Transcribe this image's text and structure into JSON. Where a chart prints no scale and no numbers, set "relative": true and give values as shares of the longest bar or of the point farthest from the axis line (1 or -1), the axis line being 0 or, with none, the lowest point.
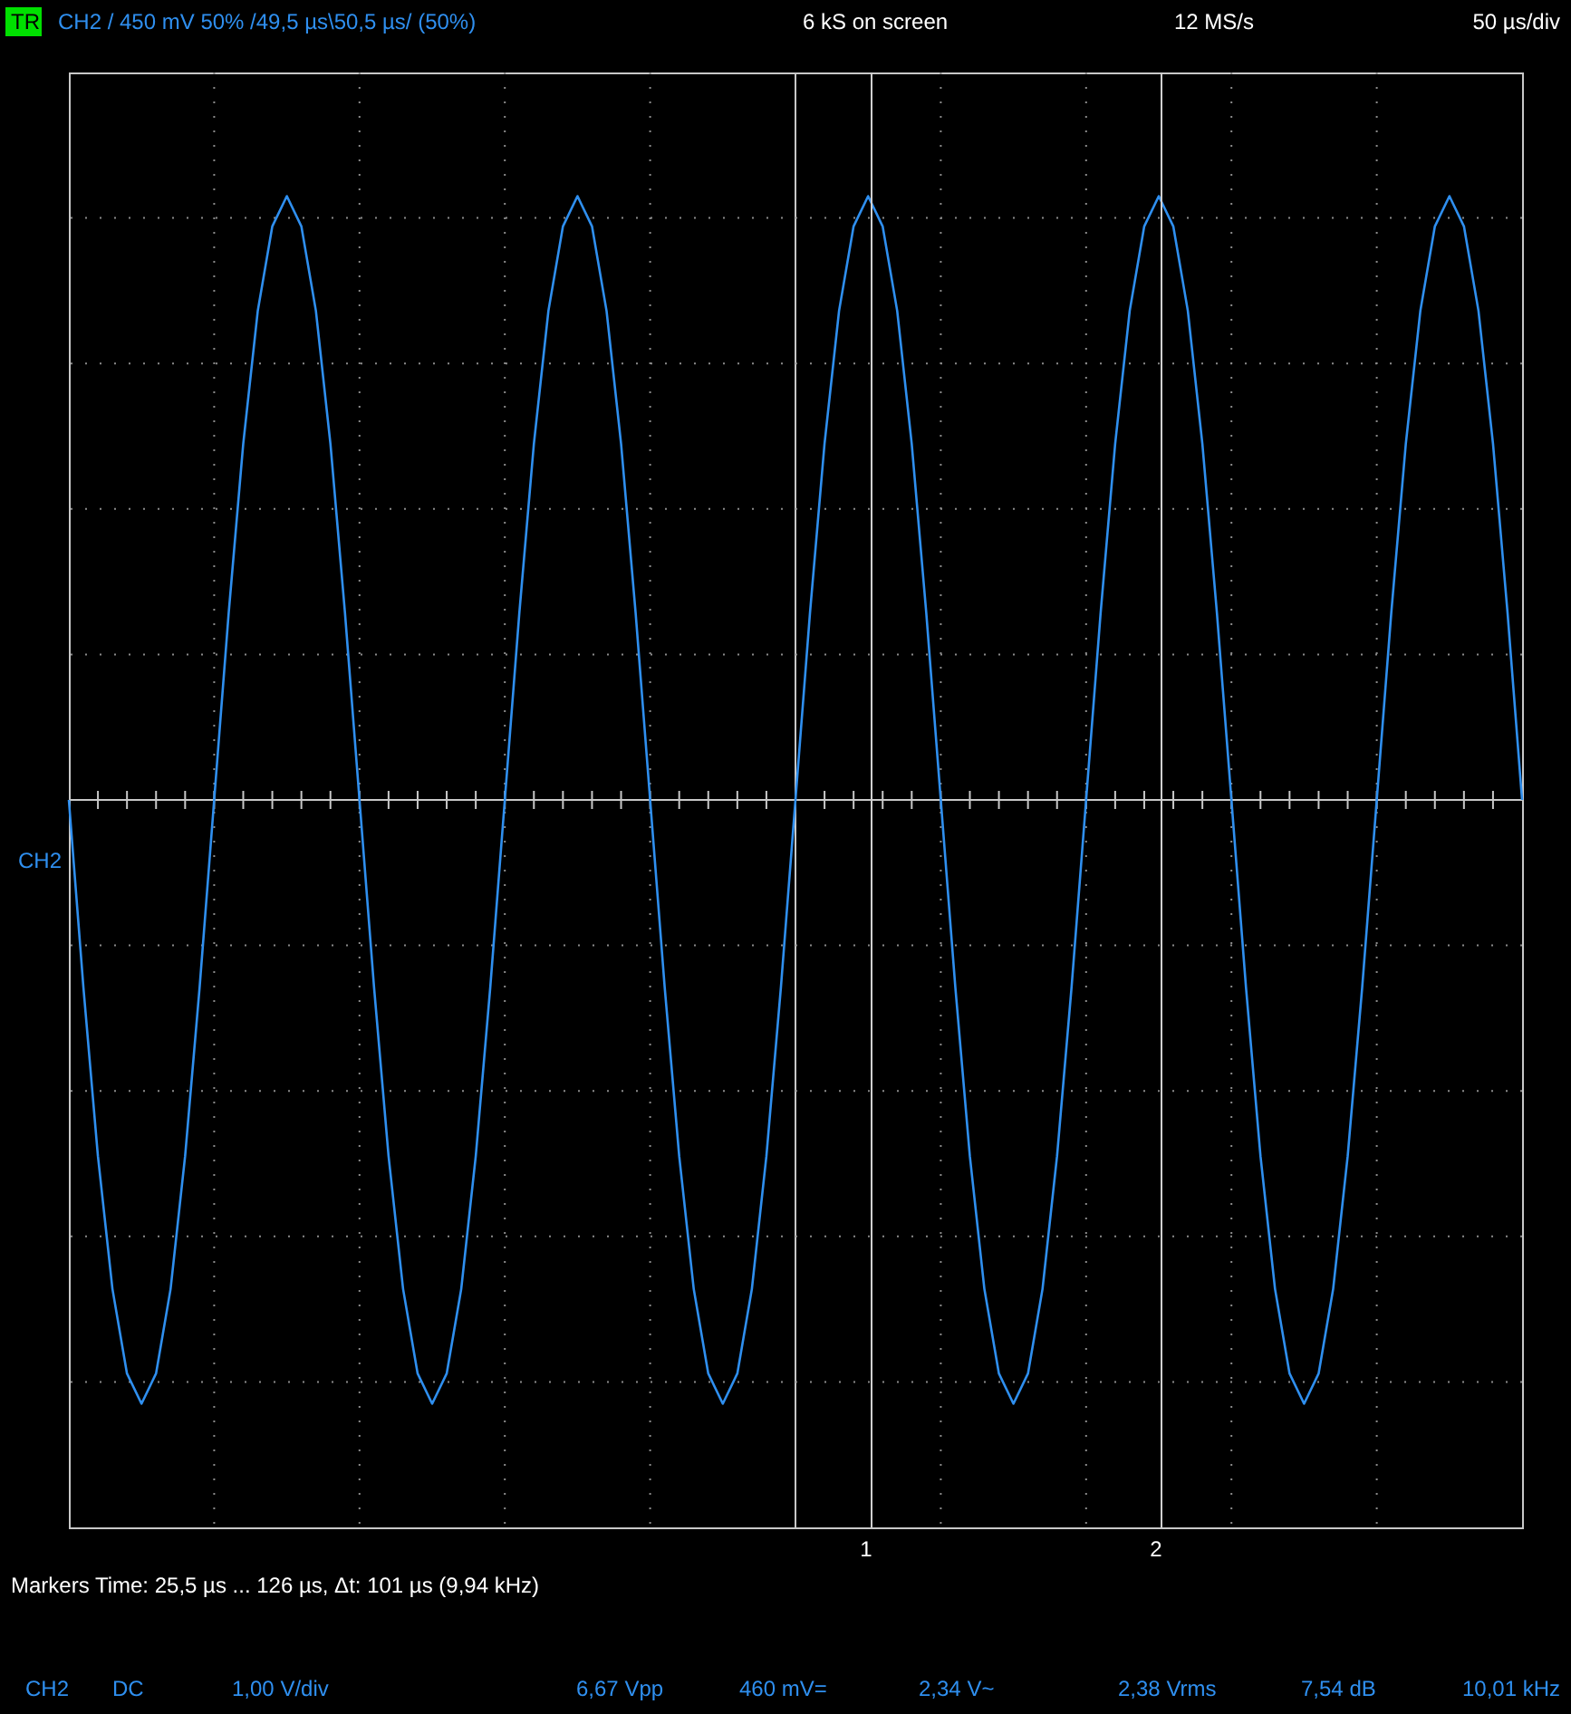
{
  "chart_data": {
    "type": "line",
    "relative": true,
    "categories": [
      null,
      null,
      null,
      null,
      null,
      null,
      null,
      null,
      null,
      null,
      null,
      null,
      null,
      null,
      null,
      null,
      null,
      null,
      null,
      null,
      null,
      null,
      null,
      null,
      null,
      null,
      null,
      null,
      null,
      null,
      null,
      null,
      null,
      null,
      null,
      null,
      null,
      null,
      null,
      null,
      null,
      null,
      null,
      null,
      null,
      null,
      null,
      null,
      null,
      null,
      null,
      null,
      null,
      null,
      null,
      null,
      null,
      null,
      null,
      null,
      null,
      null,
      null,
      null,
      null,
      null,
      null,
      null,
      null,
      null,
      null,
      null,
      null,
      null,
      null,
      null,
      null,
      null,
      null,
      null,
      null,
      null,
      null,
      null,
      null,
      null,
      null,
      null,
      null,
      null,
      null,
      null,
      null,
      null,
      null,
      null,
      null,
      null,
      null,
      null,
      null
    ],
    "series": [
      {
        "name": "CH2",
        "color": "#2f8fef",
        "values": [
          0,
          -0.31,
          -0.59,
          -0.81,
          -0.95,
          -1,
          -0.95,
          -0.81,
          -0.59,
          -0.31,
          0,
          0.31,
          0.59,
          0.81,
          0.95,
          1,
          0.95,
          0.81,
          0.59,
          0.31,
          0,
          -0.31,
          -0.59,
          -0.81,
          -0.95,
          -1,
          -0.95,
          -0.81,
          -0.59,
          -0.31,
          0,
          0.31,
          0.59,
          0.81,
          0.95,
          1,
          0.95,
          0.81,
          0.59,
          0.31,
          0,
          -0.31,
          -0.59,
          -0.81,
          -0.95,
          -1,
          -0.95,
          -0.81,
          -0.59,
          -0.31,
          0,
          0.31,
          0.59,
          0.81,
          0.95,
          1,
          0.95,
          0.81,
          0.59,
          0.31,
          0,
          -0.31,
          -0.59,
          -0.81,
          -0.95,
          -1,
          -0.95,
          -0.81,
          -0.59,
          -0.31,
          0,
          0.31,
          0.59,
          0.81,
          0.95,
          1,
          0.95,
          0.81,
          0.59,
          0.31,
          0,
          -0.31,
          -0.59,
          -0.81,
          -0.95,
          -1,
          -0.95,
          -0.81,
          -0.59,
          -0.31,
          0,
          0.31,
          0.59,
          0.81,
          0.95,
          1,
          0.95,
          0.81,
          0.59,
          0.31,
          0
        ]
      }
    ],
    "grid": true,
    "marker": "none",
    "line_style": "solid",
    "annotations": [
      "TR",
      "CH2  /  450 mV  50%  /49,5 µs\\50,5 µs/ (50%)",
      "6 kS on screen",
      "12 MS/s",
      "50 µs/div",
      "Markers  Time: 25,5 µs ... 126 µs,  Δt: 101 µs (9,94 kHz)",
      "CH2",
      "DC",
      "1,00 V/div",
      "6,67 Vpp",
      "460 mV=",
      "2,34 V~",
      "2,38 Vrms",
      "7,54 dB",
      "10,01 kHz",
      "1",
      "2"
    ]
  }
}
